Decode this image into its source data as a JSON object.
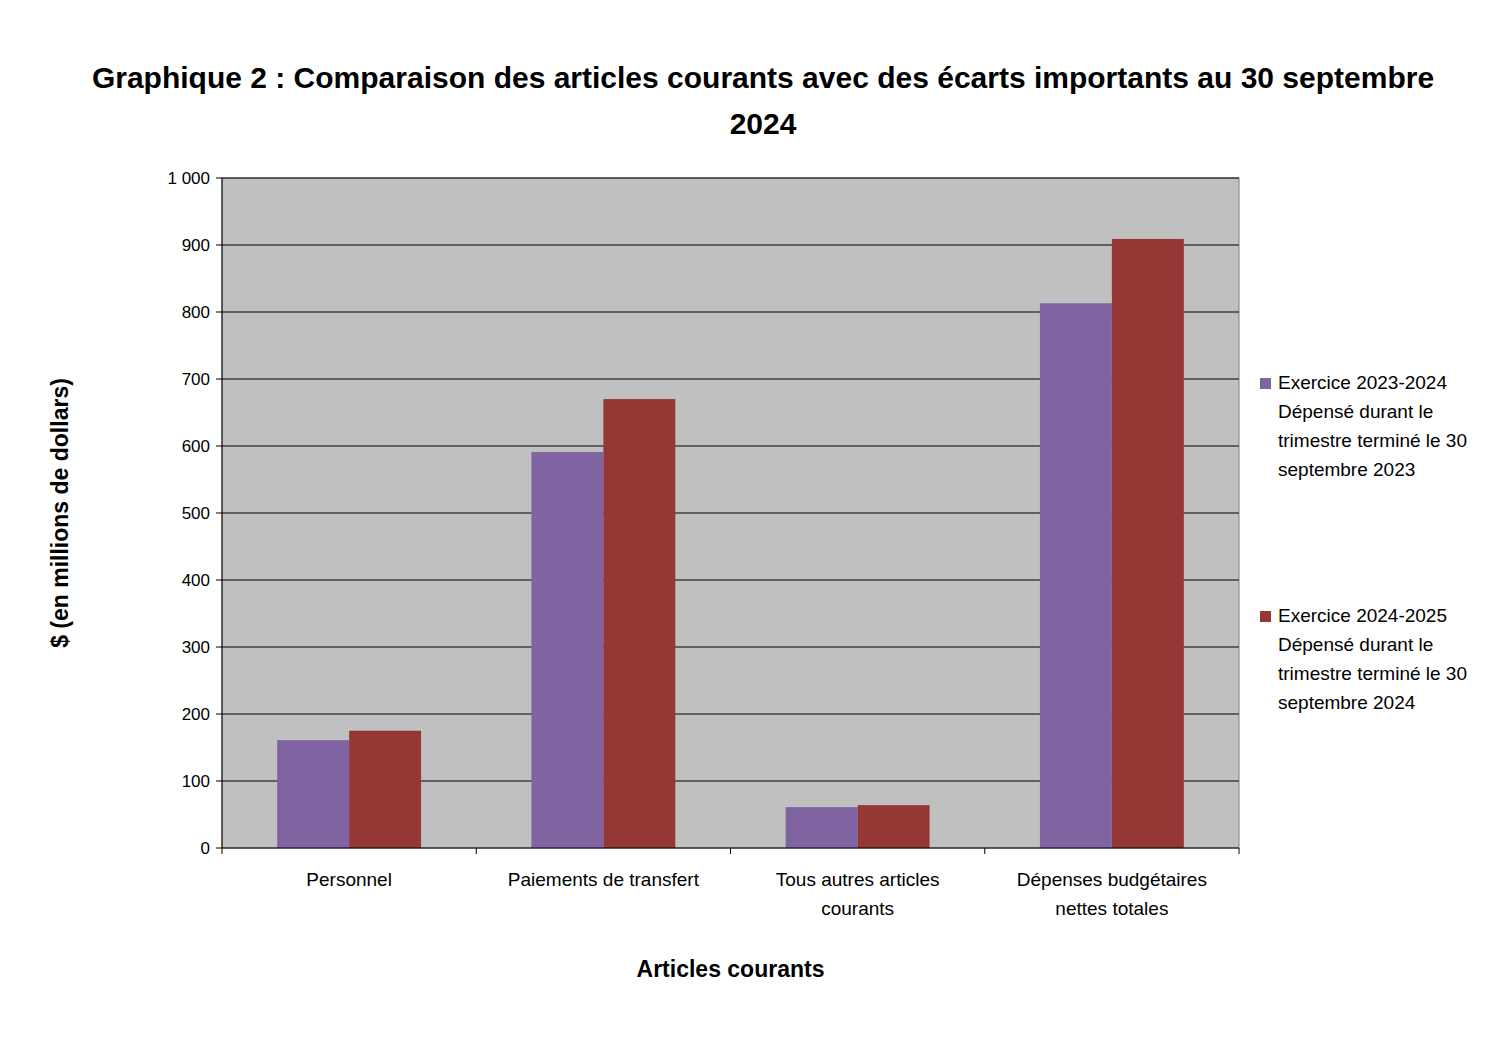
{
  "chart_data": {
    "type": "bar",
    "title": "Graphique 2 : Comparaison des articles courants avec des écarts importants au 30 septembre 2024",
    "x_label": "Articles courants",
    "y_label": "$ (en millions de dollars)",
    "categories": [
      "Personnel",
      "Paiements de transfert",
      "Tous autres articles courants",
      "Dépenses budgétaires nettes totales"
    ],
    "series": [
      {
        "name": "Exercice 2023-2024 Dépensé durant le trimestre terminé le 30 septembre 2023",
        "color": "#8064a2",
        "values": [
          161,
          591,
          61,
          813
        ]
      },
      {
        "name": "Exercice 2024-2025 Dépensé durant le trimestre terminé le 30 septembre 2024",
        "color": "#953735",
        "values": [
          175,
          670,
          64,
          909
        ]
      }
    ],
    "ylim": [
      0,
      1000
    ],
    "yticks": [
      0,
      100,
      200,
      300,
      400,
      500,
      600,
      700,
      800,
      900,
      {
        "value": 1000,
        "label": "1 000"
      }
    ],
    "grid": true,
    "legend": "right"
  }
}
